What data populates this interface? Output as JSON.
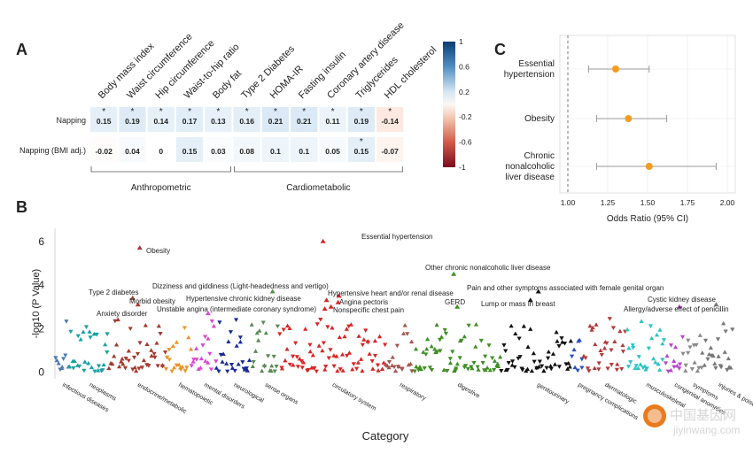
{
  "panels": {
    "a": "A",
    "b": "B",
    "c": "C"
  },
  "watermark": {
    "text1": "中国基因网",
    "text2": "jiyinwang.com"
  },
  "chart_data": [
    {
      "type": "heatmap",
      "columns": [
        "Body mass index",
        "Waist circumference",
        "Hip circumference",
        "Waist-to-hip ratio",
        "Body fat",
        "Type 2 Diabetes",
        "HOMA-IR",
        "Fasting insulin",
        "Coronary artery disease",
        "Triglycerides",
        "HDL cholesterol"
      ],
      "rows": [
        "Napping",
        "Napping (BMI adj.)"
      ],
      "values": [
        [
          0.15,
          0.19,
          0.14,
          0.17,
          0.13,
          0.16,
          0.21,
          0.21,
          0.11,
          0.19,
          -0.14
        ],
        [
          -0.02,
          0.04,
          0,
          0.15,
          0.03,
          0.08,
          0.1,
          0.1,
          0.05,
          0.15,
          -0.07
        ]
      ],
      "value_labels": [
        [
          "0.15",
          "0.19",
          "0.14",
          "0.17",
          "0.13",
          "0.16",
          "0.21",
          "0.21",
          "0.11",
          "0.19",
          "-0.14"
        ],
        [
          "-0.02",
          "0.04",
          "0",
          "0.15",
          "0.03",
          "0.08",
          "0.1",
          "0.1",
          "0.05",
          "0.15",
          "-0.07"
        ]
      ],
      "significant": [
        [
          true,
          true,
          true,
          true,
          true,
          true,
          true,
          true,
          true,
          true,
          true
        ],
        [
          false,
          false,
          false,
          false,
          false,
          false,
          false,
          false,
          false,
          true,
          false
        ]
      ],
      "groups": [
        {
          "label": "Anthropometric",
          "columns": [
            0,
            4
          ]
        },
        {
          "label": "Cardiometabolic",
          "columns": [
            5,
            10
          ]
        }
      ],
      "colorbar": {
        "ticks": [
          "1",
          "0.6",
          "0.2",
          "-0.2",
          "-0.6",
          "-1"
        ],
        "range": [
          -1,
          1
        ]
      },
      "sig_marker": "*"
    },
    {
      "type": "scatter",
      "ylabel": "-log10 (P Value)",
      "xlabel": "Category",
      "ylim": [
        -0.3,
        6.6
      ],
      "yticks": [
        "0",
        "2",
        "4",
        "6"
      ],
      "categories": [
        {
          "label": "infectious diseases",
          "color": "#4d78b0",
          "n": 10
        },
        {
          "label": "neoplasms",
          "color": "#17a2a2",
          "n": 28
        },
        {
          "label": "endocrine/metabolic",
          "color": "#a33a2e",
          "n": 40
        },
        {
          "label": "hematopoietic",
          "color": "#e8962a",
          "n": 18
        },
        {
          "label": "mental disorders",
          "color": "#d94ad1",
          "n": 18
        },
        {
          "label": "neurological",
          "color": "#1a2b9a",
          "n": 24
        },
        {
          "label": "sense organs",
          "color": "#5a8a55",
          "n": 20
        },
        {
          "label": "circulatory system",
          "color": "#d92424",
          "n": 75
        },
        {
          "label": "respiratory",
          "color": "#a5564f",
          "n": 20
        },
        {
          "label": "digestive",
          "color": "#3f8f25",
          "n": 62
        },
        {
          "label": "genitourinary",
          "color": "#111111",
          "n": 50
        },
        {
          "label": "pregnancy complications",
          "color": "#2a4fbf",
          "n": 8
        },
        {
          "label": "dermatologic",
          "color": "#b23a3a",
          "n": 30
        },
        {
          "label": "musculoskeletal",
          "color": "#2cc4c4",
          "n": 28
        },
        {
          "label": "congenital anomalies",
          "color": "#bb44cc",
          "n": 12
        },
        {
          "label": "symptoms",
          "color": "#8a8a8a",
          "n": 14
        },
        {
          "label": "injuries & poisonings",
          "color": "#777777",
          "n": 22
        }
      ],
      "annotations": [
        {
          "label": "Essential hypertension",
          "category": 7,
          "y": 6.0
        },
        {
          "label": "Obesity",
          "category": 2,
          "y": 5.7
        },
        {
          "label": "Other chronic nonalcoholic liver disease",
          "category": 9,
          "y": 4.5
        },
        {
          "label": "Dizziness and giddiness (Light-headedness and vertigo)",
          "category": 6,
          "y": 3.7
        },
        {
          "label": "Pain and other symptoms associated with female genital organ",
          "category": 10,
          "y": 3.7
        },
        {
          "label": "Type 2 diabetes",
          "category": 2,
          "y": 3.4
        },
        {
          "label": "Hypertensive heart and/or renal disease",
          "category": 7,
          "y": 3.5
        },
        {
          "label": "Morbid obesity",
          "category": 2,
          "y": 3.1
        },
        {
          "label": "Hypertensive chronic kidney disease",
          "category": 7,
          "y": 3.3
        },
        {
          "label": "Angina pectoris",
          "category": 7,
          "y": 3.2
        },
        {
          "label": "GERD",
          "category": 9,
          "y": 3.0
        },
        {
          "label": "Lump or mass in breast",
          "category": 10,
          "y": 3.3
        },
        {
          "label": "Cystic kidney disease",
          "category": 14,
          "y": 3.0
        },
        {
          "label": "Unstable angina (intermediate coronary syndrome)",
          "category": 7,
          "y": 3.0
        },
        {
          "label": "Nonspecific chest pain",
          "category": 7,
          "y": 2.9
        },
        {
          "label": "Anxiety disorder",
          "category": 4,
          "y": 2.7
        },
        {
          "label": "Allergy/adverse effect of penicillin",
          "category": 16,
          "y": 3.1
        }
      ]
    },
    {
      "type": "forest",
      "xlabel": "Odds Ratio (95% CI)",
      "xlim": [
        0.95,
        2.05
      ],
      "xticks": [
        "1.00",
        "1.25",
        "1.50",
        "1.75",
        "2.00"
      ],
      "reference": 1.0,
      "point_color": "#f39c1f",
      "rows": [
        {
          "label": "Essential hypertension",
          "or": 1.3,
          "lo": 1.13,
          "hi": 1.51
        },
        {
          "label": "Obesity",
          "or": 1.38,
          "lo": 1.18,
          "hi": 1.62
        },
        {
          "label": "Chronic nonalcoholic liver disease",
          "or": 1.51,
          "lo": 1.18,
          "hi": 1.93
        }
      ]
    }
  ]
}
